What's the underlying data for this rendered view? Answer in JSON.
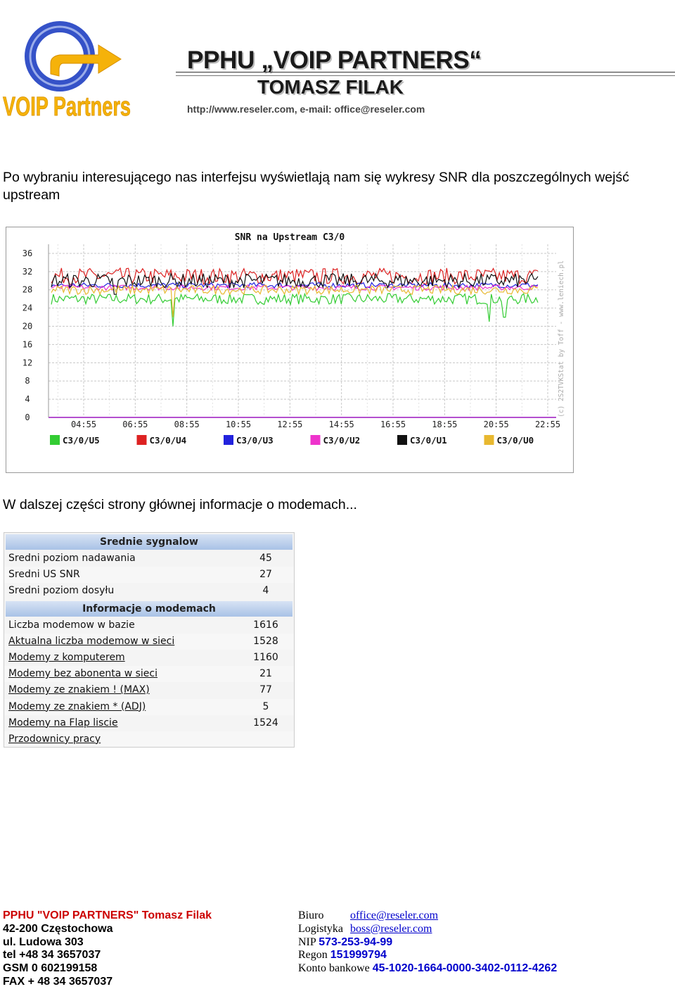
{
  "header": {
    "company_name": "PPHU „VOIP PARTNERS“",
    "owner": "TOMASZ FILAK",
    "contact_line": "http://www.reseler.com,  e-mail: office@reseler.com",
    "logo_text": "VOIP Partners",
    "logo_colors": {
      "blue": "#3552c8",
      "orange": "#f5b20a"
    }
  },
  "intro_text": "Po wybraniu interesującego nas interfejsu wyświetlają nam się wykresy SNR dla poszczególnych wejść upstream",
  "chart_data": {
    "type": "line",
    "title": "SNR na Upstream C3/0",
    "xlabel": "",
    "ylabel": "",
    "ylim": [
      0,
      38
    ],
    "y_ticks": [
      0,
      4,
      8,
      12,
      16,
      20,
      24,
      28,
      32,
      36
    ],
    "x_ticks": [
      "04:55",
      "06:55",
      "08:55",
      "10:55",
      "12:55",
      "14:55",
      "16:55",
      "18:55",
      "20:55",
      "22:55"
    ],
    "watermark": "(c) 2S2TVKStat by Toff - www.leniech.pl",
    "grid": true,
    "legend_position": "bottom",
    "series": [
      {
        "name": "C3/0/U5",
        "color": "#33cc33",
        "level": 26.0,
        "noise": 1.2,
        "dips": [
          [
            0.25,
            20
          ],
          [
            0.9,
            21
          ],
          [
            0.93,
            22
          ]
        ]
      },
      {
        "name": "C3/0/U4",
        "color": "#dd2222",
        "level": 31.0,
        "noise": 1.8,
        "dips": []
      },
      {
        "name": "C3/0/U3",
        "color": "#2222dd",
        "level": 29.0,
        "noise": 0.6,
        "dips": []
      },
      {
        "name": "C3/0/U2",
        "color": "#ee33cc",
        "level": 28.5,
        "noise": 0.6,
        "dips": []
      },
      {
        "name": "C3/0/U1",
        "color": "#111111",
        "level": 30.0,
        "noise": 1.6,
        "dips": [
          [
            0.13,
            27
          ]
        ]
      },
      {
        "name": "C3/0/U0",
        "color": "#e8b830",
        "level": 28.0,
        "noise": 1.0,
        "dips": [
          [
            0.25,
            22
          ]
        ]
      }
    ]
  },
  "second_text": "W dalszej części strony głównej informacje o modemach...",
  "signals_table": {
    "sections": [
      {
        "title": "Srednie sygnalow",
        "rows": [
          {
            "label": "Sredni poziom nadawania",
            "value": "45",
            "link": false
          },
          {
            "label": "Sredni US SNR",
            "value": "27",
            "link": false
          },
          {
            "label": "Sredni poziom dosyłu",
            "value": "4",
            "link": false
          }
        ]
      },
      {
        "title": "Informacje o modemach",
        "rows": [
          {
            "label": "Liczba modemow w bazie",
            "value": "1616",
            "link": false
          },
          {
            "label": "Aktualna liczba modemow w sieci",
            "value": "1528",
            "link": true
          },
          {
            "label": "Modemy z komputerem",
            "value": "1160",
            "link": true
          },
          {
            "label": "Modemy bez abonenta w sieci",
            "value": "21",
            "link": true
          },
          {
            "label": "Modemy ze znakiem ! (MAX)",
            "value": "77",
            "link": true
          },
          {
            "label": "Modemy ze znakiem * (ADJ)",
            "value": "5",
            "link": true
          },
          {
            "label": "Modemy na Flap liscie",
            "value": "1524",
            "link": true
          },
          {
            "label": "Przodownicy pracy",
            "value": "",
            "link": true
          }
        ]
      }
    ]
  },
  "footer": {
    "left": {
      "brand": "PPHU \"VOIP PARTNERS\" Tomasz Filak",
      "address1": "42-200 Częstochowa",
      "address2": "ul. Ludowa 303",
      "tel": "tel +48 34 3657037",
      "gsm": "GSM 0 602199158",
      "fax": "FAX + 48 34 3657037"
    },
    "right": {
      "biuro_label": "Biuro",
      "biuro_email": "office@reseler.com",
      "logistyka_label": "Logistyka",
      "logistyka_email": "boss@reseler.com",
      "nip_label": "NIP",
      "nip_value": "573-253-94-99",
      "regon_label": "Regon",
      "regon_value": "151999794",
      "konto_label": "Konto bankowe",
      "konto_value": "45-1020-1664-0000-3402-0112-4262"
    }
  }
}
